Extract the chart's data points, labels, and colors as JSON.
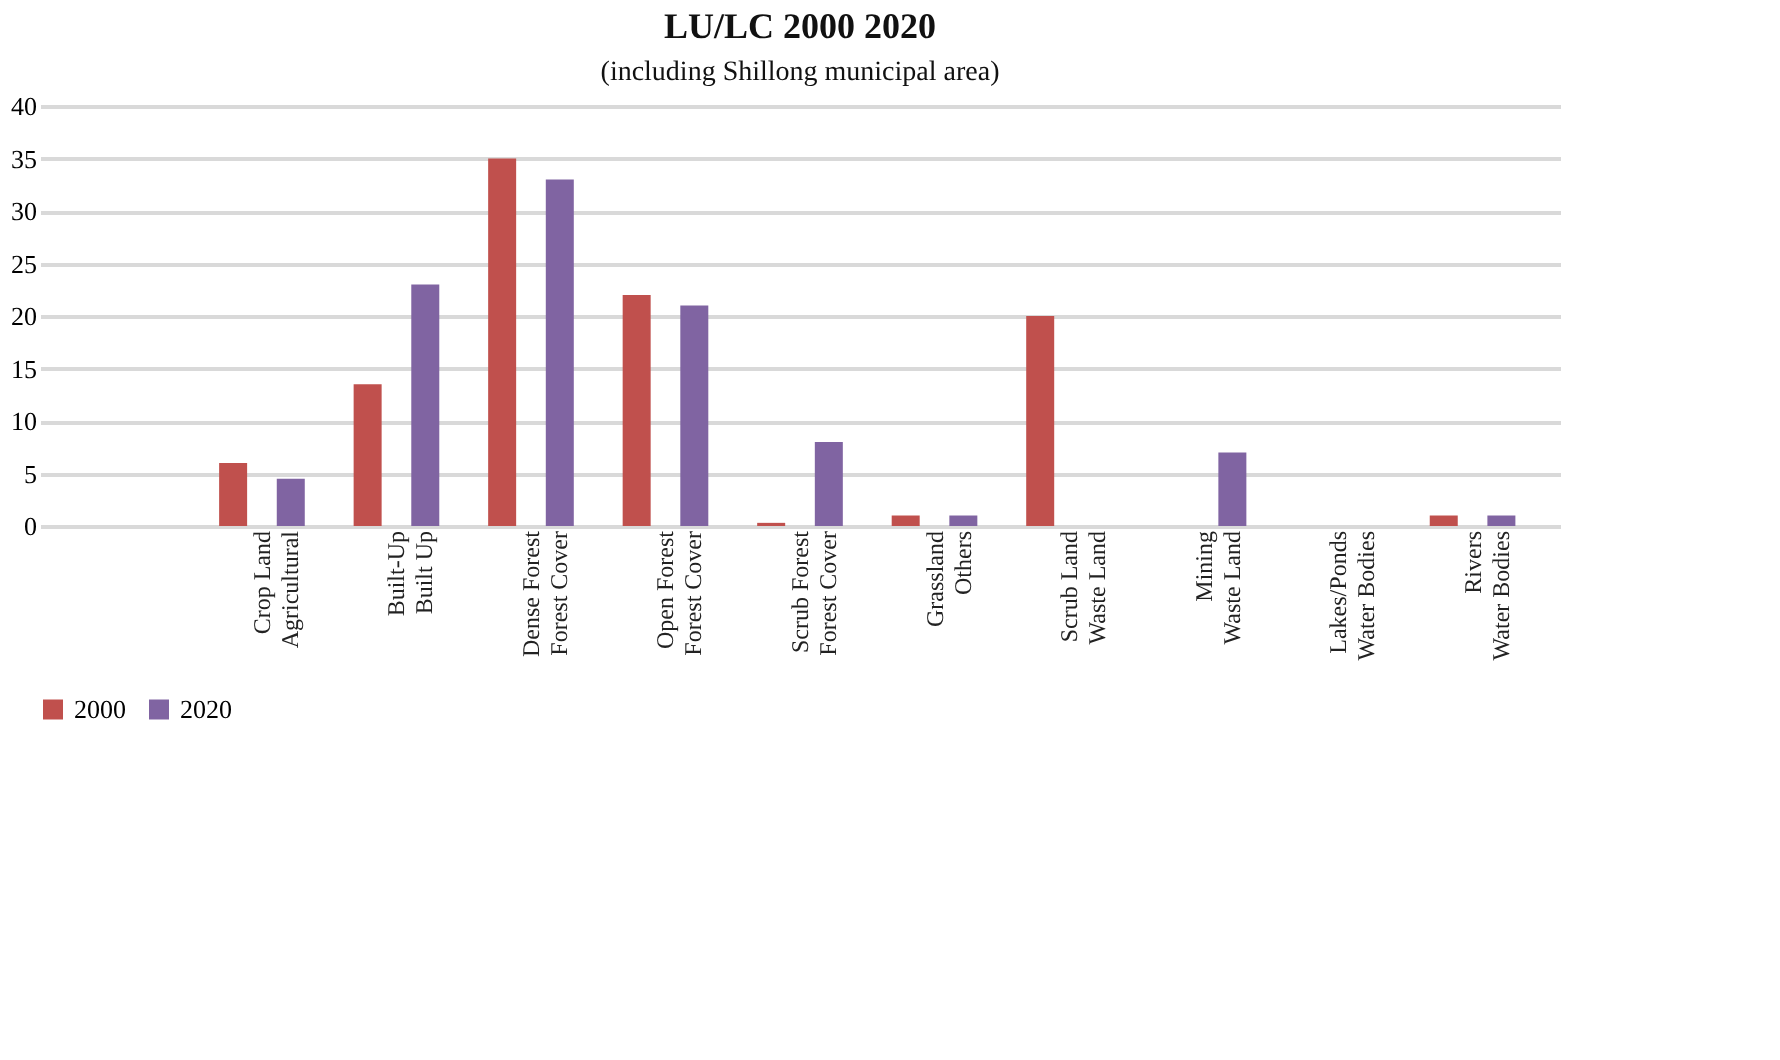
{
  "chart_data": {
    "type": "bar",
    "title": "LU/LC 2000   2020",
    "annotations": [
      "(including Shillong municipal area)"
    ],
    "categories": [
      null,
      "Crop Land\nAgricultural",
      "Built-Up\nBuilt Up",
      "Dense Forest\nForest Cover",
      "Open Forest\nForest Cover",
      "Scrub Forest\nForest Cover",
      "Grassland\nOthers",
      "Scrub Land\nWaste Land",
      "Mining\nWaste Land",
      "Lakes/Ponds\nWater Bodies",
      "Rivers\nWater Bodies"
    ],
    "series": [
      {
        "name": "2000",
        "color": "#c0504d",
        "values": [
          null,
          6,
          13.5,
          35,
          22,
          0.3,
          1,
          20,
          0,
          0,
          1
        ]
      },
      {
        "name": "2020",
        "color": "#8064a2",
        "values": [
          null,
          4.5,
          23,
          33,
          21,
          8,
          1,
          0,
          7,
          0,
          1
        ]
      }
    ],
    "ylim": [
      0,
      40
    ],
    "yticks": [
      0,
      5,
      10,
      15,
      20,
      25,
      30,
      35,
      40
    ],
    "grid": "y",
    "legend": "bottom"
  }
}
